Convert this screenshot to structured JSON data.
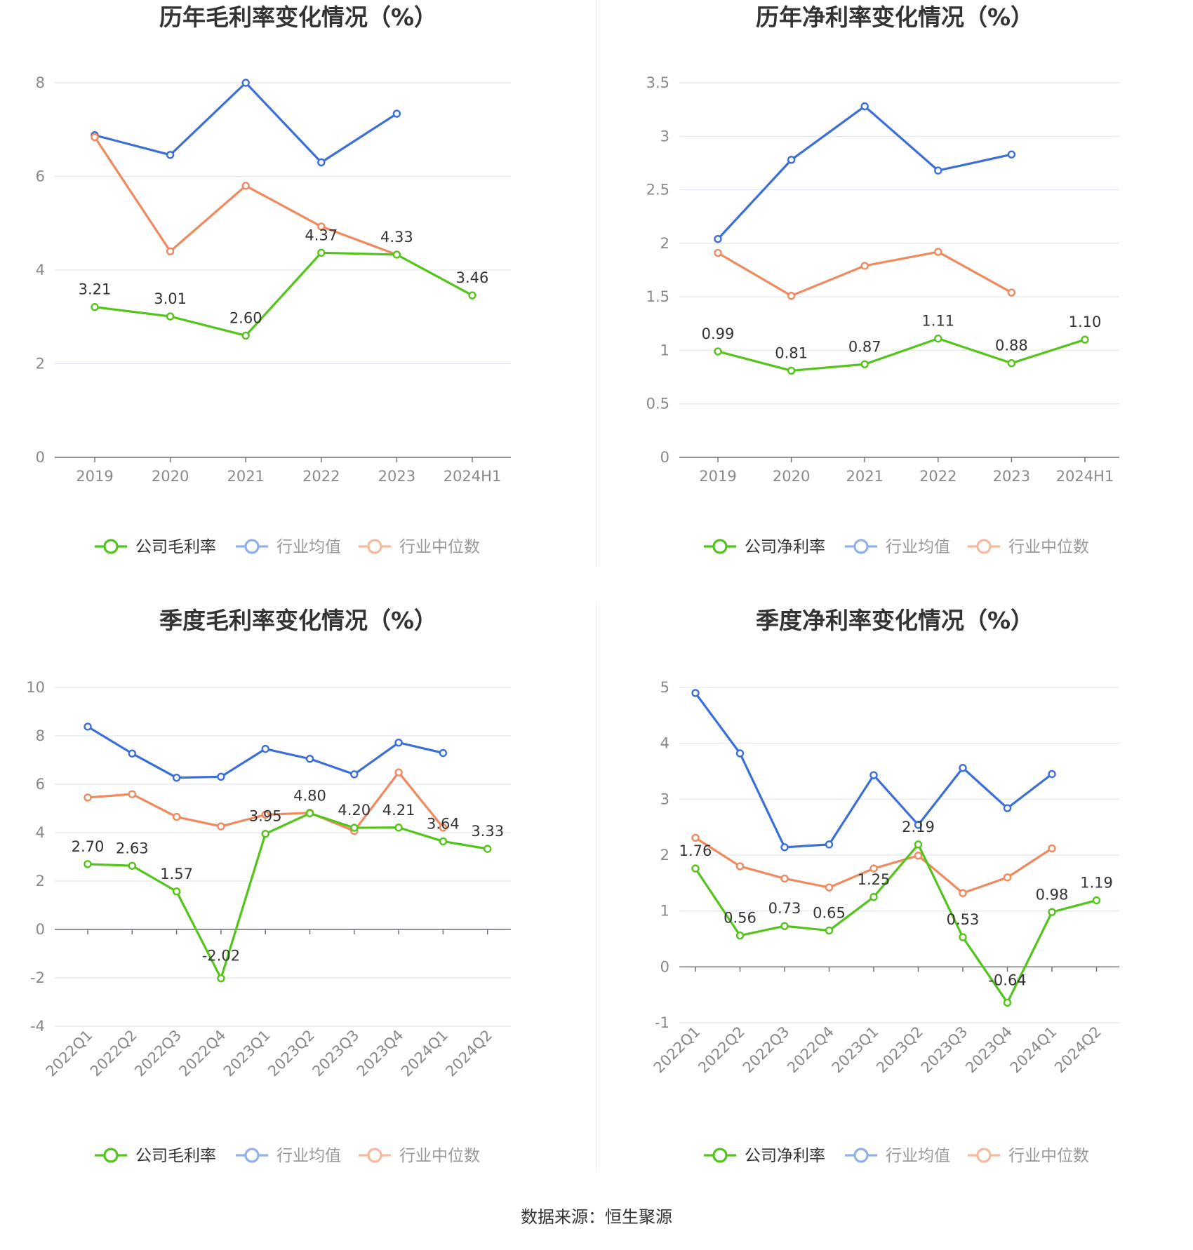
{
  "source": "数据来源：恒生聚源",
  "colors": {
    "company": "#52c41a",
    "avg": "#3b6fd8",
    "median": "#f0895d",
    "avg_legend": "#8fb0ea",
    "median_legend": "#f6b99e"
  },
  "chart_data": [
    {
      "type": "line",
      "title": "历年毛利率变化情况（%）",
      "categories": [
        "2019",
        "2020",
        "2021",
        "2022",
        "2023",
        "2024H1"
      ],
      "ylim": [
        0,
        8
      ],
      "yticks": [
        0,
        2,
        4,
        6,
        8
      ],
      "ytick_labels": [
        "0",
        "2",
        "4",
        "6",
        "8"
      ],
      "rotate_x": false,
      "series": [
        {
          "name": "公司毛利率",
          "color": "#52c41a",
          "values": [
            3.21,
            3.01,
            2.6,
            4.37,
            4.33,
            3.46
          ],
          "labels": [
            "3.21",
            "3.01",
            "2.60",
            "4.37",
            "4.33",
            "3.46"
          ]
        },
        {
          "name": "行业均值",
          "color": "#3b6fd8",
          "values": [
            6.88,
            6.46,
            8.0,
            6.3,
            7.34,
            null
          ]
        },
        {
          "name": "行业中位数",
          "color": "#f0895d",
          "values": [
            6.84,
            4.4,
            5.8,
            4.93,
            4.33,
            null
          ]
        }
      ]
    },
    {
      "type": "line",
      "title": "历年净利率变化情况（%）",
      "categories": [
        "2019",
        "2020",
        "2021",
        "2022",
        "2023",
        "2024H1"
      ],
      "ylim": [
        0,
        3.5
      ],
      "yticks": [
        0,
        0.5,
        1,
        1.5,
        2,
        2.5,
        3,
        3.5
      ],
      "ytick_labels": [
        "0",
        "0.5",
        "1",
        "1.5",
        "2",
        "2.5",
        "3",
        "3.5"
      ],
      "rotate_x": false,
      "series": [
        {
          "name": "公司净利率",
          "color": "#52c41a",
          "values": [
            0.99,
            0.81,
            0.87,
            1.11,
            0.88,
            1.1
          ],
          "labels": [
            "0.99",
            "0.81",
            "0.87",
            "1.11",
            "0.88",
            "1.10"
          ]
        },
        {
          "name": "行业均值",
          "color": "#3b6fd8",
          "values": [
            2.04,
            2.78,
            3.28,
            2.68,
            2.83,
            null
          ]
        },
        {
          "name": "行业中位数",
          "color": "#f0895d",
          "values": [
            1.91,
            1.51,
            1.79,
            1.92,
            1.54,
            null
          ]
        }
      ]
    },
    {
      "type": "line",
      "title": "季度毛利率变化情况（%）",
      "categories": [
        "2022Q1",
        "2022Q2",
        "2022Q3",
        "2022Q4",
        "2023Q1",
        "2023Q2",
        "2023Q3",
        "2023Q4",
        "2024Q1",
        "2024Q2"
      ],
      "ylim": [
        -4,
        10
      ],
      "yticks": [
        -4,
        -2,
        0,
        2,
        4,
        6,
        8,
        10
      ],
      "ytick_labels": [
        "-4",
        "-2",
        "0",
        "2",
        "4",
        "6",
        "8",
        "10"
      ],
      "rotate_x": true,
      "series": [
        {
          "name": "公司毛利率",
          "color": "#52c41a",
          "values": [
            2.7,
            2.63,
            1.57,
            -2.02,
            3.95,
            4.8,
            4.2,
            4.21,
            3.64,
            3.33
          ],
          "labels": [
            "2.70",
            "2.63",
            "1.57",
            "-2.02",
            "3.95",
            "4.80",
            "4.20",
            "4.21",
            "3.64",
            "3.33"
          ]
        },
        {
          "name": "行业均值",
          "color": "#3b6fd8",
          "values": [
            8.38,
            7.27,
            6.27,
            6.31,
            7.46,
            7.05,
            6.41,
            7.72,
            7.29,
            null
          ]
        },
        {
          "name": "行业中位数",
          "color": "#f0895d",
          "values": [
            5.45,
            5.59,
            4.65,
            4.26,
            4.74,
            4.82,
            4.07,
            6.49,
            4.21,
            null
          ]
        }
      ]
    },
    {
      "type": "line",
      "title": "季度净利率变化情况（%）",
      "categories": [
        "2022Q1",
        "2022Q2",
        "2022Q3",
        "2022Q4",
        "2023Q1",
        "2023Q2",
        "2023Q3",
        "2023Q4",
        "2024Q1",
        "2024Q2"
      ],
      "ylim": [
        -1,
        5
      ],
      "yticks": [
        -1,
        0,
        1,
        2,
        3,
        4,
        5
      ],
      "ytick_labels": [
        "-1",
        "0",
        "1",
        "2",
        "3",
        "4",
        "5"
      ],
      "rotate_x": true,
      "series": [
        {
          "name": "公司净利率",
          "color": "#52c41a",
          "values": [
            1.76,
            0.56,
            0.73,
            0.65,
            1.25,
            2.19,
            0.53,
            -0.64,
            0.98,
            1.19
          ],
          "labels": [
            "1.76",
            "0.56",
            "0.73",
            "0.65",
            "1.25",
            "2.19",
            "0.53",
            "-0.64",
            "0.98",
            "1.19"
          ]
        },
        {
          "name": "行业均值",
          "color": "#3b6fd8",
          "values": [
            4.9,
            3.82,
            2.14,
            2.19,
            3.43,
            2.54,
            3.56,
            2.84,
            3.45,
            null
          ]
        },
        {
          "name": "行业中位数",
          "color": "#f0895d",
          "values": [
            2.31,
            1.8,
            1.58,
            1.42,
            1.76,
            1.99,
            1.32,
            1.6,
            2.12,
            null
          ]
        }
      ]
    }
  ],
  "legends": [
    [
      {
        "label": "公司毛利率",
        "color": "#52c41a",
        "text_color": "#333333"
      },
      {
        "label": "行业均值",
        "color": "#8fb0ea",
        "text_color": "#999999"
      },
      {
        "label": "行业中位数",
        "color": "#f6b99e",
        "text_color": "#999999"
      }
    ],
    [
      {
        "label": "公司净利率",
        "color": "#52c41a",
        "text_color": "#333333"
      },
      {
        "label": "行业均值",
        "color": "#8fb0ea",
        "text_color": "#999999"
      },
      {
        "label": "行业中位数",
        "color": "#f6b99e",
        "text_color": "#999999"
      }
    ],
    [
      {
        "label": "公司毛利率",
        "color": "#52c41a",
        "text_color": "#333333"
      },
      {
        "label": "行业均值",
        "color": "#8fb0ea",
        "text_color": "#999999"
      },
      {
        "label": "行业中位数",
        "color": "#f6b99e",
        "text_color": "#999999"
      }
    ],
    [
      {
        "label": "公司净利率",
        "color": "#52c41a",
        "text_color": "#333333"
      },
      {
        "label": "行业均值",
        "color": "#8fb0ea",
        "text_color": "#999999"
      },
      {
        "label": "行业中位数",
        "color": "#f6b99e",
        "text_color": "#999999"
      }
    ]
  ]
}
